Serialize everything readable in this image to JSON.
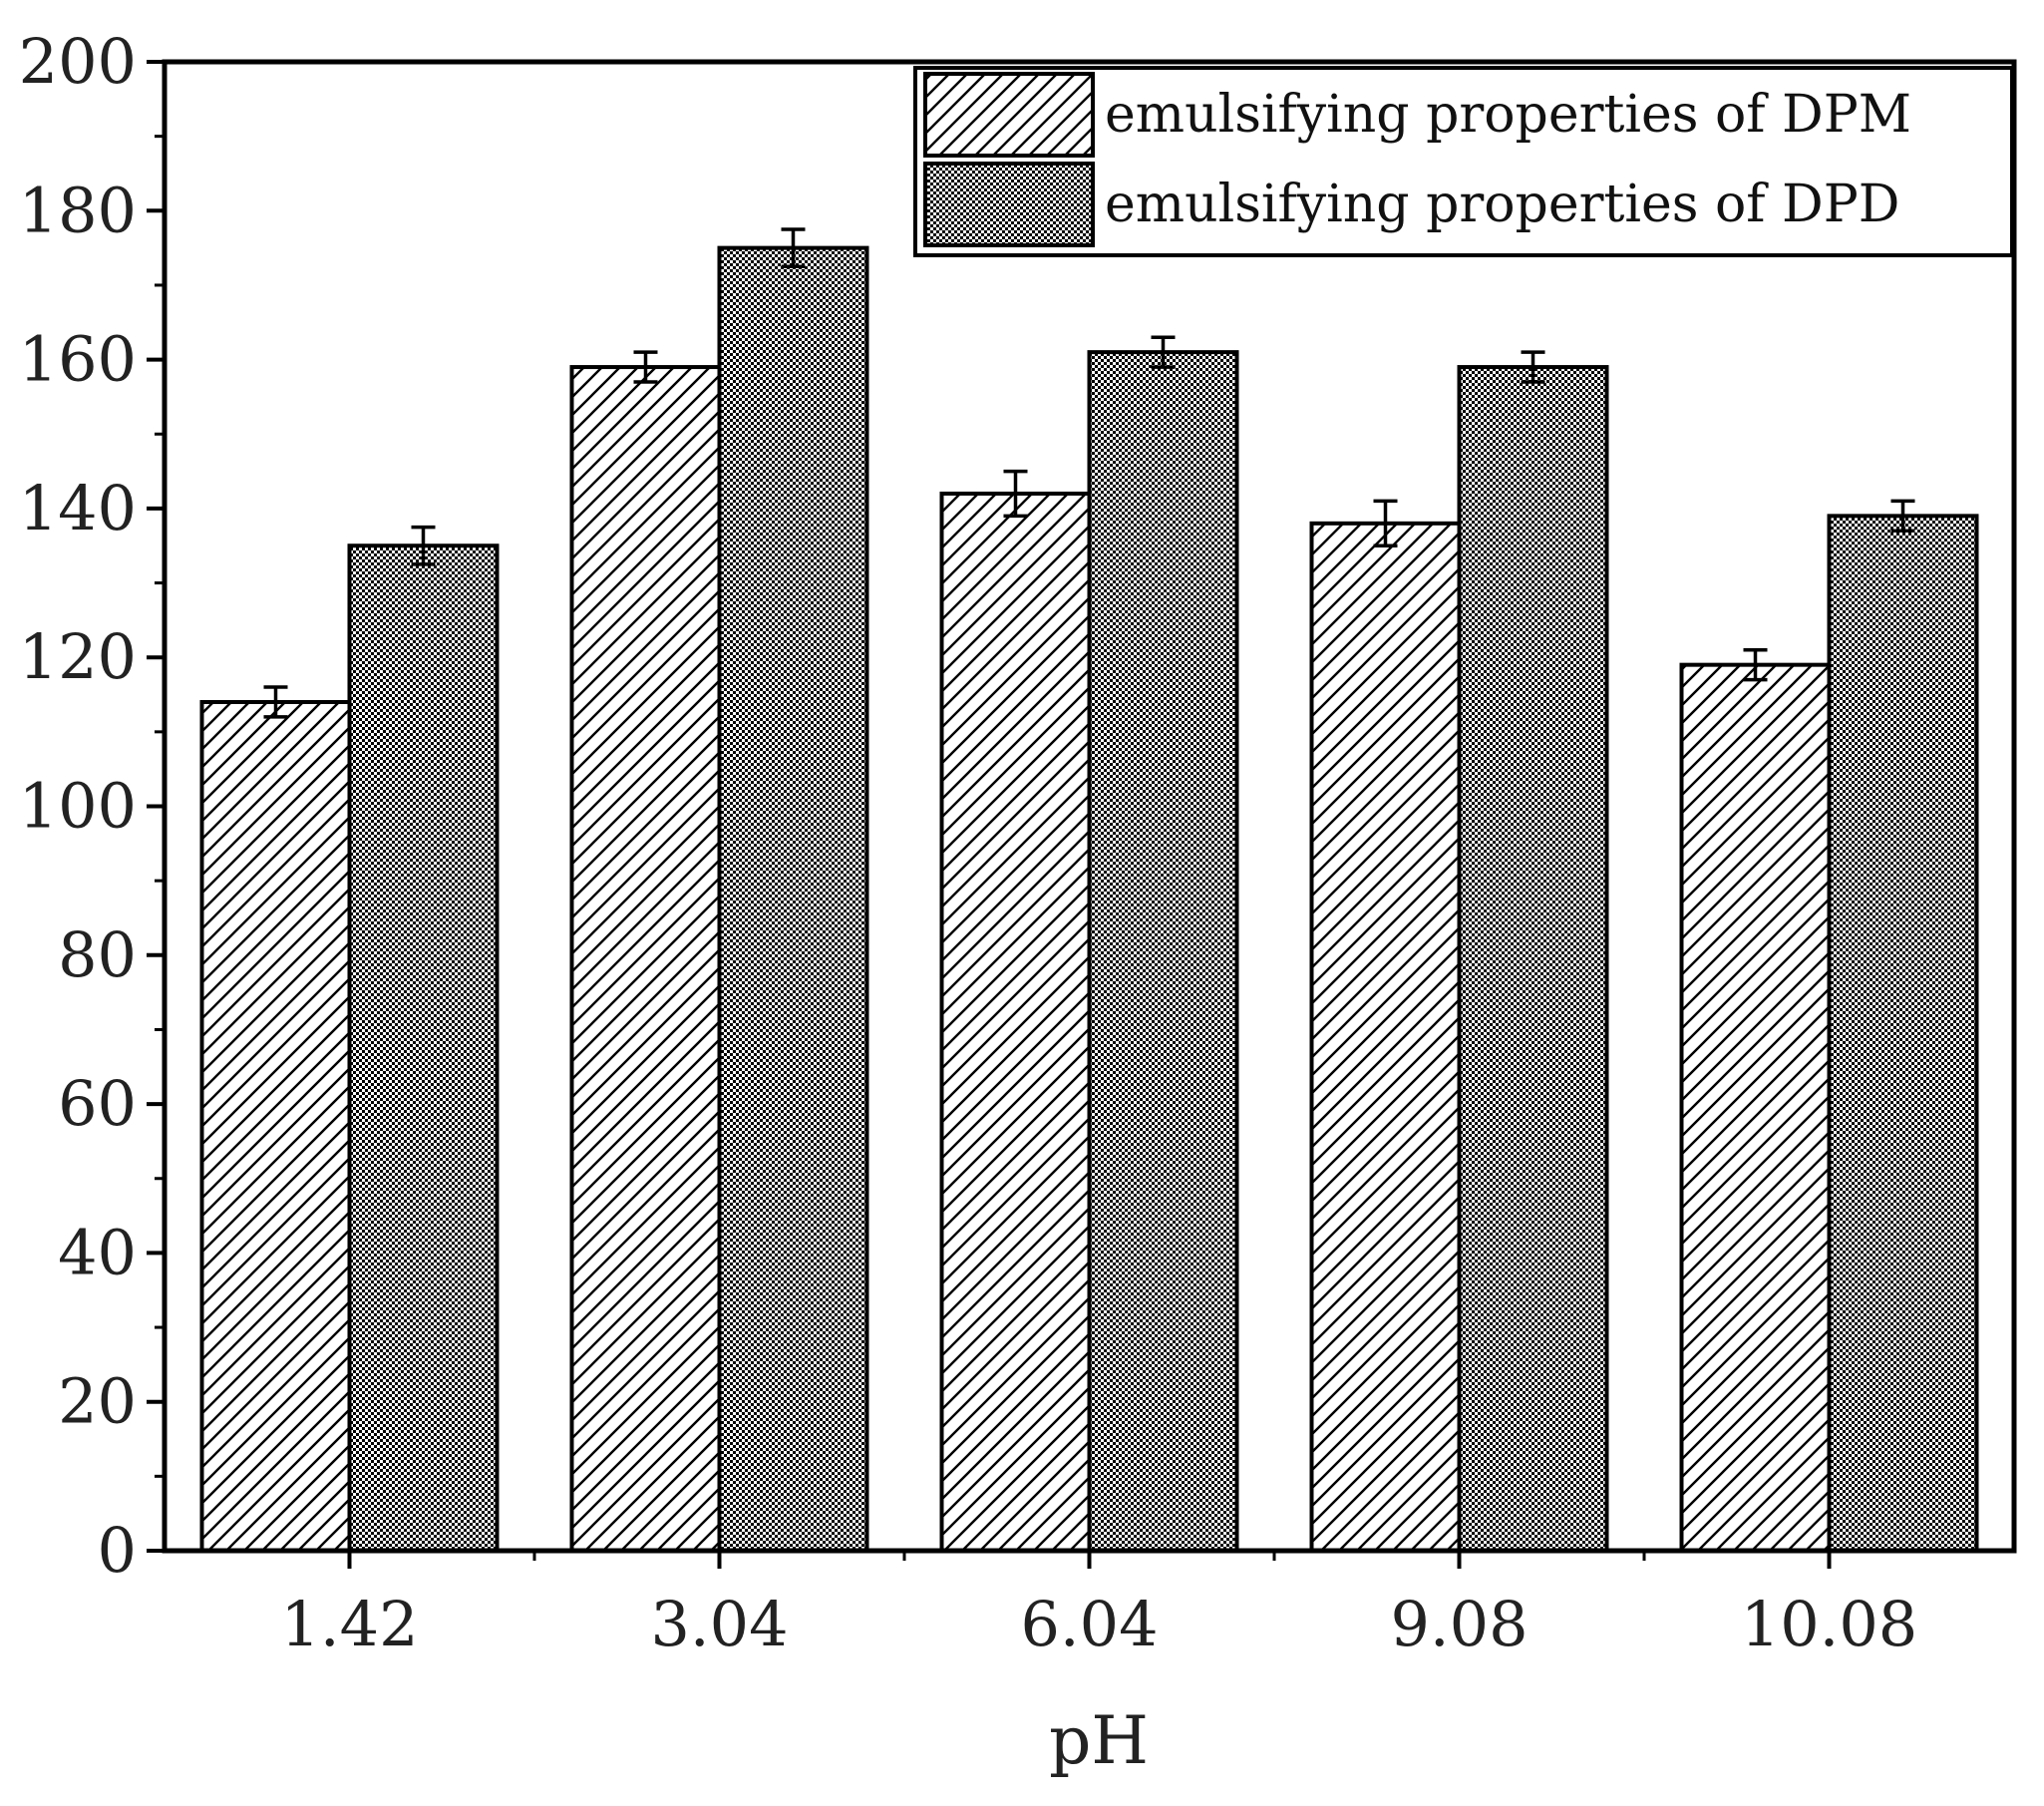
{
  "chart_data": {
    "type": "bar",
    "title": "",
    "xlabel": "pH",
    "ylabel": "",
    "categories": [
      "1.42",
      "3.04",
      "6.04",
      "9.08",
      "10.08"
    ],
    "ylim": [
      0,
      200
    ],
    "yticks": [
      "0",
      "20",
      "40",
      "60",
      "80",
      "100",
      "120",
      "140",
      "160",
      "180",
      "200"
    ],
    "series": [
      {
        "name": "emulsifying properties of DPM",
        "pattern": "diagonal-hatch",
        "values": [
          114,
          159,
          142,
          138,
          119
        ],
        "errors": [
          2,
          2,
          3,
          3,
          2
        ]
      },
      {
        "name": "emulsifying properties of DPD",
        "pattern": "checker",
        "values": [
          135,
          175,
          161,
          159,
          139
        ],
        "errors": [
          2.5,
          2.5,
          2,
          2,
          2
        ]
      }
    ],
    "legend_position": "top-right",
    "grid": false,
    "error_bars": true
  }
}
